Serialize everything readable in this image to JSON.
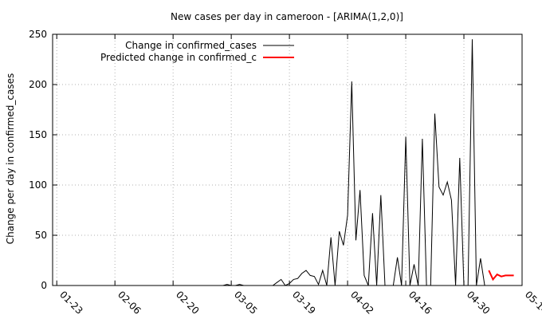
{
  "chart_data": {
    "type": "line",
    "title": "New cases per day in cameroon -  [ARIMA(1,2,0)]",
    "xlabel": "",
    "ylabel": "Change per day in confirmed_cases",
    "x_tick_labels": [
      "01-23",
      "02-06",
      "02-20",
      "03-05",
      "03-19",
      "04-02",
      "04-16",
      "04-30",
      "05-14"
    ],
    "x_range_days_since_0123": [
      -1,
      112
    ],
    "ylim": [
      0,
      250
    ],
    "y_ticks": [
      0,
      50,
      100,
      150,
      200,
      250
    ],
    "grid": true,
    "legend_position": "top-left",
    "series": [
      {
        "name": "Change in confirmed_cases",
        "color": "#000000",
        "points": [
          [
            0,
            0
          ],
          [
            5,
            0
          ],
          [
            10,
            0
          ],
          [
            15,
            0
          ],
          [
            20,
            0
          ],
          [
            25,
            0
          ],
          [
            30,
            0
          ],
          [
            35,
            0
          ],
          [
            40,
            0
          ],
          [
            41,
            1
          ],
          [
            42,
            0
          ],
          [
            43,
            0
          ],
          [
            44,
            1
          ],
          [
            45,
            0
          ],
          [
            50,
            0
          ],
          [
            52,
            0
          ],
          [
            53,
            3
          ],
          [
            54,
            6
          ],
          [
            55,
            0
          ],
          [
            56,
            2
          ],
          [
            57,
            6
          ],
          [
            58,
            7
          ],
          [
            59,
            12
          ],
          [
            60,
            15
          ],
          [
            61,
            10
          ],
          [
            62,
            9
          ],
          [
            63,
            1
          ],
          [
            64,
            15
          ],
          [
            65,
            0
          ],
          [
            66,
            48
          ],
          [
            67,
            0
          ],
          [
            68,
            54
          ],
          [
            69,
            40
          ],
          [
            70,
            70
          ],
          [
            71,
            203
          ],
          [
            72,
            45
          ],
          [
            73,
            95
          ],
          [
            74,
            10
          ],
          [
            75,
            0
          ],
          [
            76,
            72
          ],
          [
            77,
            0
          ],
          [
            78,
            90
          ],
          [
            79,
            0
          ],
          [
            80,
            0
          ],
          [
            81,
            0
          ],
          [
            82,
            28
          ],
          [
            83,
            0
          ],
          [
            84,
            148
          ],
          [
            85,
            0
          ],
          [
            86,
            21
          ],
          [
            87,
            0
          ],
          [
            88,
            146
          ],
          [
            89,
            0
          ],
          [
            90,
            0
          ],
          [
            91,
            171
          ],
          [
            92,
            98
          ],
          [
            93,
            90
          ],
          [
            94,
            103
          ],
          [
            95,
            85
          ],
          [
            96,
            0
          ],
          [
            97,
            127
          ],
          [
            98,
            0
          ],
          [
            99,
            0
          ],
          [
            100,
            245
          ],
          [
            101,
            0
          ],
          [
            102,
            27
          ],
          [
            103,
            0
          ]
        ]
      },
      {
        "name": "Predicted change in confirmed_c",
        "color": "#ff0000",
        "points": [
          [
            104,
            15
          ],
          [
            105,
            6
          ],
          [
            106,
            11
          ],
          [
            107,
            9
          ],
          [
            108,
            10
          ],
          [
            109,
            10
          ],
          [
            110,
            10
          ]
        ]
      }
    ]
  }
}
